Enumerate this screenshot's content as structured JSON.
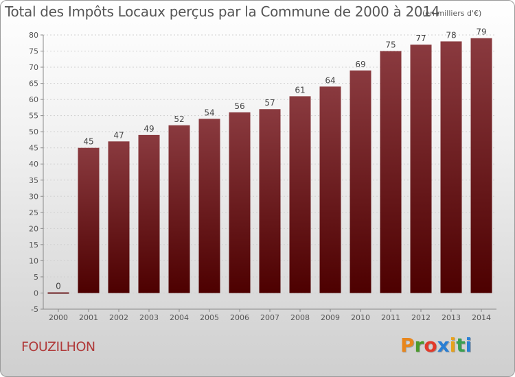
{
  "header": {
    "title": "Total des Impôts Locaux perçus par la Commune de 2000 à 2014",
    "subtitle": "(en milliers d'€)"
  },
  "footer": {
    "commune": "FOUZILHON",
    "brand": "Proxiti",
    "brand_colors": [
      "#e8861c",
      "#4a9a2c",
      "#e23a2a",
      "#2a7fd4",
      "#e8a21c",
      "#3aa050",
      "#2a7fd4"
    ]
  },
  "colors": {
    "bar_top": "#8a3a3f",
    "bar_bottom": "#4d0000",
    "gridline": "#d0d0d0",
    "axis": "#888888",
    "title": "#555555",
    "commune": "#b03a3a"
  },
  "chart_data": {
    "type": "bar",
    "categories": [
      "2000",
      "2001",
      "2002",
      "2003",
      "2004",
      "2005",
      "2006",
      "2007",
      "2008",
      "2009",
      "2010",
      "2011",
      "2012",
      "2013",
      "2014"
    ],
    "values": [
      0,
      45,
      47,
      49,
      52,
      54,
      56,
      57,
      61,
      64,
      69,
      75,
      77,
      78,
      79
    ],
    "data_labels": [
      "0",
      "45",
      "47",
      "49",
      "52",
      "54",
      "56",
      "57",
      "61",
      "64",
      "69",
      "75",
      "77",
      "78",
      "79"
    ],
    "ylim": [
      -5,
      80
    ],
    "yticks": [
      -5,
      0,
      5,
      10,
      15,
      20,
      25,
      30,
      35,
      40,
      45,
      50,
      55,
      60,
      65,
      70,
      75,
      80
    ],
    "ytick_labels": [
      "-5",
      "0",
      "5",
      "10",
      "15",
      "20",
      "25",
      "30",
      "35",
      "40",
      "45",
      "50",
      "55",
      "60",
      "65",
      "70",
      "75",
      "80"
    ],
    "xlabel": "",
    "ylabel": "",
    "grid": true,
    "legend": "none"
  }
}
